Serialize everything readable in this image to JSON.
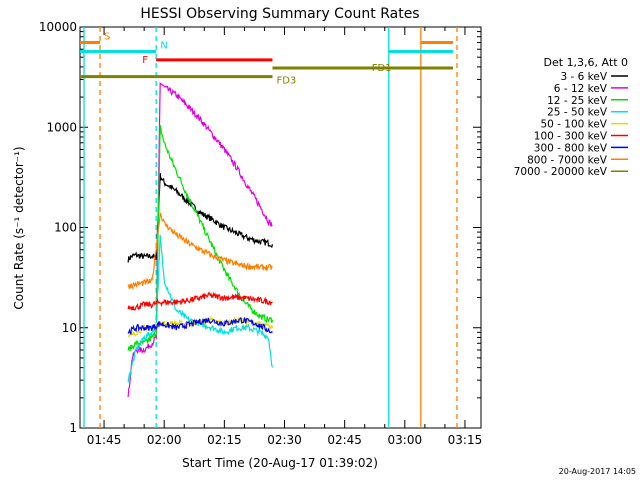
{
  "chart_data": {
    "type": "line",
    "title": "HESSI Observing Summary Count Rates",
    "xlabel": "Start Time (20-Aug-17 01:39:02)",
    "ylabel": "Count Rate (s⁻¹ detector⁻¹)",
    "x_unit": "UT",
    "y_scale": "log",
    "xlim": [
      "01:39",
      "03:19"
    ],
    "ylim": [
      1,
      10000
    ],
    "x_ticks": [
      "01:45",
      "02:00",
      "02:15",
      "02:30",
      "02:45",
      "03:00",
      "03:15"
    ],
    "y_ticks": [
      "1",
      "10",
      "100",
      "1000",
      "10000"
    ],
    "legend_title": "Det 1,3,6, Att 0",
    "legend_position": "right",
    "timestamp": "20-Aug-2017 14:05",
    "series": [
      {
        "name": "3 - 6 keV",
        "color": "#000000",
        "x": [
          "01:51",
          "01:52",
          "01:53",
          "01:55",
          "01:57",
          "01:58",
          "01:59",
          "02:00",
          "02:03",
          "02:06",
          "02:09",
          "02:12",
          "02:15",
          "02:18",
          "02:21",
          "02:24",
          "02:26",
          "02:27"
        ],
        "y": [
          48,
          52,
          53,
          51,
          52,
          50,
          330,
          280,
          230,
          180,
          140,
          120,
          100,
          88,
          78,
          72,
          70,
          68
        ]
      },
      {
        "name": "6 - 12 keV",
        "color": "#e000e0",
        "x": [
          "01:51",
          "01:52",
          "01:53",
          "01:55",
          "01:57",
          "01:58",
          "01:59",
          "02:00",
          "02:03",
          "02:06",
          "02:09",
          "02:12",
          "02:15",
          "02:18",
          "02:21",
          "02:24",
          "02:26",
          "02:27"
        ],
        "y": [
          2,
          5,
          6,
          6,
          7,
          8,
          2800,
          2500,
          2100,
          1600,
          1200,
          850,
          600,
          400,
          250,
          160,
          115,
          105
        ]
      },
      {
        "name": "12 - 25 keV",
        "color": "#00e000",
        "x": [
          "01:51",
          "01:53",
          "01:55",
          "01:57",
          "01:58",
          "01:59",
          "02:00",
          "02:02",
          "02:04",
          "02:06",
          "02:08",
          "02:10",
          "02:12",
          "02:14",
          "02:16",
          "02:18",
          "02:20",
          "02:22",
          "02:24",
          "02:26",
          "02:27"
        ],
        "y": [
          6,
          7,
          7,
          8,
          9,
          1000,
          700,
          450,
          300,
          200,
          140,
          95,
          65,
          45,
          32,
          24,
          18,
          15,
          13,
          12,
          12
        ]
      },
      {
        "name": "25 - 50 keV",
        "color": "#00e0e0",
        "x": [
          "01:51",
          "01:53",
          "01:55",
          "01:57",
          "01:58",
          "01:59",
          "02:00",
          "02:03",
          "02:06",
          "02:09",
          "02:12",
          "02:15",
          "02:18",
          "02:21",
          "02:24",
          "02:26",
          "02:27"
        ],
        "y": [
          3,
          6,
          8,
          9,
          10,
          80,
          30,
          15,
          12,
          11,
          10,
          9,
          10,
          10,
          9,
          8,
          4
        ]
      },
      {
        "name": "50 - 100 keV",
        "color": "#e0e000",
        "x": [
          "01:51",
          "01:53",
          "01:55",
          "01:57",
          "01:59",
          "02:03",
          "02:07",
          "02:11",
          "02:15",
          "02:19",
          "02:23",
          "02:27"
        ],
        "y": [
          8,
          9,
          10,
          10,
          11,
          11,
          11,
          12,
          11,
          12,
          11,
          10
        ]
      },
      {
        "name": "100 - 300 keV",
        "color": "#ff0000",
        "x": [
          "01:51",
          "01:53",
          "01:55",
          "01:57",
          "01:59",
          "02:03",
          "02:07",
          "02:11",
          "02:15",
          "02:19",
          "02:23",
          "02:27"
        ],
        "y": [
          16,
          16,
          17,
          17,
          18,
          18,
          19,
          21,
          20,
          20,
          19,
          18
        ]
      },
      {
        "name": "300 - 800 keV",
        "color": "#0000ff",
        "x": [
          "01:51",
          "01:53",
          "01:55",
          "01:57",
          "01:59",
          "02:03",
          "02:07",
          "02:11",
          "02:15",
          "02:19",
          "02:23",
          "02:27"
        ],
        "y": [
          9,
          10,
          10,
          10,
          11,
          10,
          11,
          12,
          11,
          12,
          11,
          9
        ]
      },
      {
        "name": "800 - 7000 keV",
        "color": "#ff8000",
        "x": [
          "01:51",
          "01:53",
          "01:55",
          "01:57",
          "01:59",
          "02:00",
          "02:03",
          "02:06",
          "02:09",
          "02:12",
          "02:15",
          "02:18",
          "02:21",
          "02:24",
          "02:26",
          "02:27"
        ],
        "y": [
          26,
          27,
          28,
          29,
          140,
          110,
          85,
          70,
          60,
          52,
          47,
          43,
          41,
          40,
          40,
          40
        ]
      },
      {
        "name": "7000 - 20000 keV",
        "color": "#808000",
        "x": [],
        "y": []
      }
    ],
    "flag_bars": [
      {
        "label": "S",
        "color": "#ff8000",
        "segments": [
          [
            "01:39",
            "01:44"
          ],
          [
            "03:04",
            "03:12"
          ]
        ],
        "y": 7000
      },
      {
        "label": "N",
        "color": "#00e0e0",
        "segments": [
          [
            "01:39",
            "01:58"
          ],
          [
            "02:56",
            "03:12"
          ]
        ],
        "y": 5700
      },
      {
        "label": "F",
        "color": "#ff0000",
        "segments": [
          [
            "01:58",
            "02:27"
          ]
        ],
        "y": 4700
      },
      {
        "label": "FD1",
        "color": "#808000",
        "segments": [
          [
            "02:27",
            "03:12"
          ]
        ],
        "y": 3900
      },
      {
        "label": "FD3",
        "color": "#808000",
        "segments": [
          [
            "01:39",
            "02:27"
          ]
        ],
        "y": 3200
      }
    ],
    "vertical_lines": [
      {
        "x": "01:40",
        "color": "#00e0e0",
        "style": "solid"
      },
      {
        "x": "01:44",
        "color": "#ff8000",
        "style": "dashed"
      },
      {
        "x": "01:58",
        "color": "#00e0e0",
        "style": "dashed"
      },
      {
        "x": "02:56",
        "color": "#00e0e0",
        "style": "solid"
      },
      {
        "x": "03:04",
        "color": "#ff8000",
        "style": "solid"
      },
      {
        "x": "03:13",
        "color": "#ff8000",
        "style": "dashed"
      }
    ]
  }
}
